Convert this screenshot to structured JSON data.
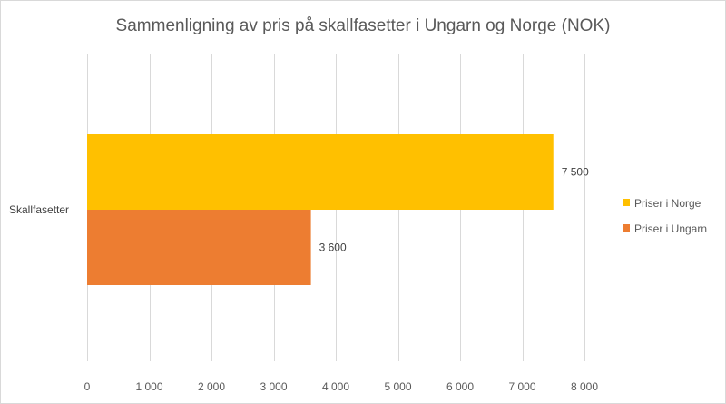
{
  "chart_data": {
    "type": "bar",
    "orientation": "horizontal",
    "title": "Sammenligning av pris på skallfasetter i Ungarn og Norge (NOK)",
    "categories": [
      "Skallfasetter"
    ],
    "series": [
      {
        "name": "Priser i Norge",
        "values": [
          7500
        ],
        "value_labels": [
          "7 500"
        ],
        "color": "#FFC000"
      },
      {
        "name": "Priser i Ungarn",
        "values": [
          3600
        ],
        "value_labels": [
          "3 600"
        ],
        "color": "#ED7D31"
      }
    ],
    "xlim": [
      0,
      8000
    ],
    "x_ticks": [
      0,
      1000,
      2000,
      3000,
      4000,
      5000,
      6000,
      7000,
      8000
    ],
    "x_tick_labels": [
      "0",
      "1 000",
      "2 000",
      "3 000",
      "4 000",
      "5 000",
      "6 000",
      "7 000",
      "8 000"
    ],
    "grid": true,
    "legend_position": "right"
  }
}
